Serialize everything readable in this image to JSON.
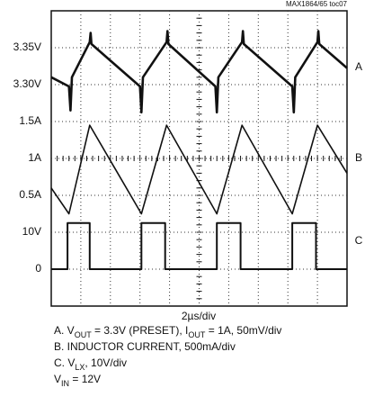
{
  "chart_data": {
    "type": "line",
    "corner_note": "MAX1864/65 toc07",
    "x_scale_label": "2µs/div",
    "xlim": [
      0,
      10
    ],
    "ylim": [
      0,
      8
    ],
    "yticks": [
      {
        "value": 7,
        "label": "3.35V"
      },
      {
        "value": 6,
        "label": "3.30V"
      },
      {
        "value": 5,
        "label": "1.5A"
      },
      {
        "value": 4,
        "label": "1A"
      },
      {
        "value": 3,
        "label": "0.5A"
      },
      {
        "value": 2,
        "label": "10V"
      },
      {
        "value": 1,
        "label": "0"
      }
    ],
    "grid": true,
    "series": [
      {
        "name": "A",
        "color": "#111111",
        "x": [
          0,
          0.6,
          0.65,
          0.7,
          1.3,
          1.33,
          1.36,
          3.0,
          3.05,
          3.1,
          3.9,
          3.93,
          3.96,
          5.55,
          5.6,
          5.65,
          6.45,
          6.48,
          6.51,
          8.15,
          8.2,
          8.25,
          9.0,
          9.03,
          9.06,
          10
        ],
        "values": [
          6.2,
          5.95,
          5.3,
          6.2,
          7.15,
          7.4,
          7.1,
          5.95,
          5.25,
          6.2,
          7.15,
          7.45,
          7.1,
          5.95,
          5.25,
          6.2,
          7.15,
          7.45,
          7.1,
          5.95,
          5.25,
          6.2,
          7.15,
          7.45,
          7.1,
          6.45
        ]
      },
      {
        "name": "B",
        "color": "#111111",
        "x": [
          0,
          0.6,
          1.3,
          3.05,
          3.9,
          5.6,
          6.45,
          8.15,
          9.0,
          10
        ],
        "values": [
          3.2,
          2.5,
          4.9,
          2.5,
          4.9,
          2.5,
          4.9,
          2.5,
          4.9,
          3.6
        ]
      },
      {
        "name": "C",
        "color": "#111111",
        "x": [
          0,
          0.55,
          0.55,
          1.3,
          1.3,
          3.05,
          3.05,
          3.85,
          3.85,
          5.6,
          5.6,
          6.4,
          6.4,
          8.15,
          8.15,
          8.95,
          8.95,
          10
        ],
        "values": [
          1,
          1,
          2.25,
          2.25,
          1,
          1,
          2.25,
          2.25,
          1,
          1,
          2.25,
          2.25,
          1,
          1,
          2.25,
          2.25,
          1,
          1
        ]
      }
    ],
    "notes": [
      [
        {
          "text": "A. V"
        },
        {
          "text": "OUT",
          "sub": true
        },
        {
          "text": " = 3.3V (PRESET),  I"
        },
        {
          "text": "OUT",
          "sub": true
        },
        {
          "text": " = 1A, 50mV/div"
        }
      ],
      [
        {
          "text": "B. INDUCTOR CURRENT, 500mA/div"
        }
      ],
      [
        {
          "text": "C. V"
        },
        {
          "text": "LX",
          "sub": true
        },
        {
          "text": ", 10V/div"
        }
      ],
      [
        {
          "text": "V"
        },
        {
          "text": "IN",
          "sub": true
        },
        {
          "text": " = 12V"
        }
      ]
    ]
  }
}
